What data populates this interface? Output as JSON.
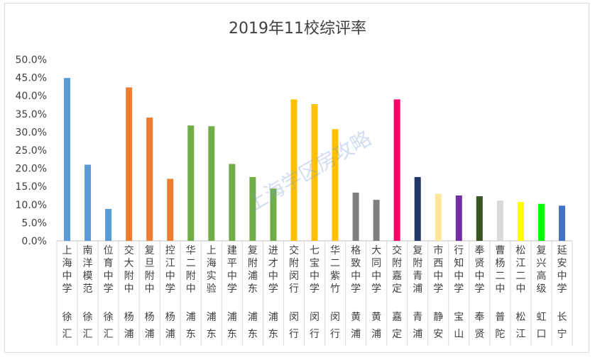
{
  "chart_data": {
    "type": "bar",
    "title": "2019年11校综评率",
    "watermark": "上海学区房攻略",
    "ylim": [
      0,
      0.5
    ],
    "yticks": [
      "0.0%",
      "5.0%",
      "10.0%",
      "15.0%",
      "20.0%",
      "25.0%",
      "30.0%",
      "35.0%",
      "40.0%",
      "45.0%",
      "50.0%"
    ],
    "grid": false,
    "legend": "none",
    "categories": [
      {
        "school": "上海中学",
        "district": "徐汇",
        "value": 0.449,
        "color": "#5b9bd5"
      },
      {
        "school": "南洋模范",
        "district": "徐汇",
        "value": 0.21,
        "color": "#5b9bd5"
      },
      {
        "school": "位育中学",
        "district": "徐汇",
        "value": 0.088,
        "color": "#5b9bd5"
      },
      {
        "school": "交大附中",
        "district": "杨浦",
        "value": 0.423,
        "color": "#ed7d31"
      },
      {
        "school": "复旦附中",
        "district": "杨浦",
        "value": 0.34,
        "color": "#ed7d31"
      },
      {
        "school": "控江中学",
        "district": "杨浦",
        "value": 0.171,
        "color": "#ed7d31"
      },
      {
        "school": "华二附中",
        "district": "浦东",
        "value": 0.318,
        "color": "#70ad47"
      },
      {
        "school": "上海实验",
        "district": "浦东",
        "value": 0.316,
        "color": "#70ad47"
      },
      {
        "school": "建平中学",
        "district": "浦东",
        "value": 0.212,
        "color": "#70ad47"
      },
      {
        "school": "复附浦东",
        "district": "浦东",
        "value": 0.176,
        "color": "#70ad47"
      },
      {
        "school": "进才中学",
        "district": "浦东",
        "value": 0.144,
        "color": "#70ad47"
      },
      {
        "school": "交附闵行",
        "district": "闵行",
        "value": 0.39,
        "color": "#ffc000"
      },
      {
        "school": "七宝中学",
        "district": "闵行",
        "value": 0.377,
        "color": "#ffc000"
      },
      {
        "school": "华二紫竹",
        "district": "闵行",
        "value": 0.308,
        "color": "#ffc000"
      },
      {
        "school": "格致中学",
        "district": "黄浦",
        "value": 0.133,
        "color": "#7f7f7f"
      },
      {
        "school": "大同中学",
        "district": "黄浦",
        "value": 0.113,
        "color": "#7f7f7f"
      },
      {
        "school": "交附嘉定",
        "district": "嘉定",
        "value": 0.39,
        "color": "#ff0066"
      },
      {
        "school": "复附青浦",
        "district": "青浦",
        "value": 0.176,
        "color": "#1f3864"
      },
      {
        "school": "市西中学",
        "district": "静安",
        "value": 0.13,
        "color": "#ffe699"
      },
      {
        "school": "行知中学",
        "district": "宝山",
        "value": 0.125,
        "color": "#7030a0"
      },
      {
        "school": "奉贤中学",
        "district": "奉贤",
        "value": 0.123,
        "color": "#375623"
      },
      {
        "school": "曹杨二中",
        "district": "普陀",
        "value": 0.111,
        "color": "#d9d9d9"
      },
      {
        "school": "松江二中",
        "district": "松江",
        "value": 0.107,
        "color": "#ffff00"
      },
      {
        "school": "复兴高级",
        "district": "虹口",
        "value": 0.102,
        "color": "#00ff00"
      },
      {
        "school": "延安中学",
        "district": "长宁",
        "value": 0.097,
        "color": "#4472c4"
      }
    ]
  }
}
